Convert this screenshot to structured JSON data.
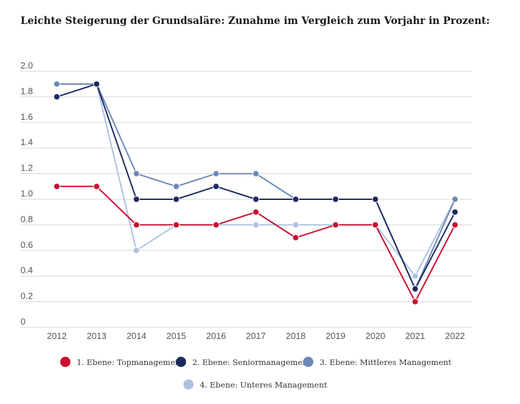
{
  "chart_data": {
    "type": "line",
    "title": "Leichte Steigerung der Grundsaläre: Zunahme im Vergleich zum Vorjahr in Prozent:",
    "xlabel": "",
    "ylabel": "",
    "categories": [
      "2012",
      "2013",
      "2014",
      "2015",
      "2016",
      "2017",
      "2018",
      "2019",
      "2020",
      "2021",
      "2022"
    ],
    "y_ticks": [
      "0",
      "0.2",
      "0.4",
      "0.6",
      "0.8",
      "1.0",
      "1.2",
      "1.4",
      "1.6",
      "1.8",
      "2.0"
    ],
    "ylim": [
      0,
      2.0
    ],
    "grid": true,
    "legend_position": "bottom",
    "series": [
      {
        "name": "1. Ebene: Topmanagement",
        "color": "#c8102e",
        "values": [
          1.1,
          1.1,
          0.8,
          0.8,
          0.8,
          0.9,
          0.7,
          0.8,
          0.8,
          0.2,
          0.8
        ]
      },
      {
        "name": "2. Ebene: Seniormanagement",
        "color": "#1b2a5e",
        "values": [
          1.8,
          1.9,
          1.0,
          1.0,
          1.1,
          1.0,
          1.0,
          1.0,
          1.0,
          0.3,
          0.9
        ]
      },
      {
        "name": "3. Ebene: Mittleres Management",
        "color": "#6b88b8",
        "values": [
          1.9,
          1.9,
          1.2,
          1.1,
          1.2,
          1.2,
          1.0,
          1.0,
          1.0,
          0.3,
          1.0
        ]
      },
      {
        "name": "4. Ebene: Unteres Management",
        "color": "#adc2e3",
        "values": [
          1.9,
          1.9,
          0.6,
          0.8,
          0.8,
          0.8,
          0.8,
          0.8,
          0.8,
          0.4,
          1.0
        ]
      }
    ]
  }
}
